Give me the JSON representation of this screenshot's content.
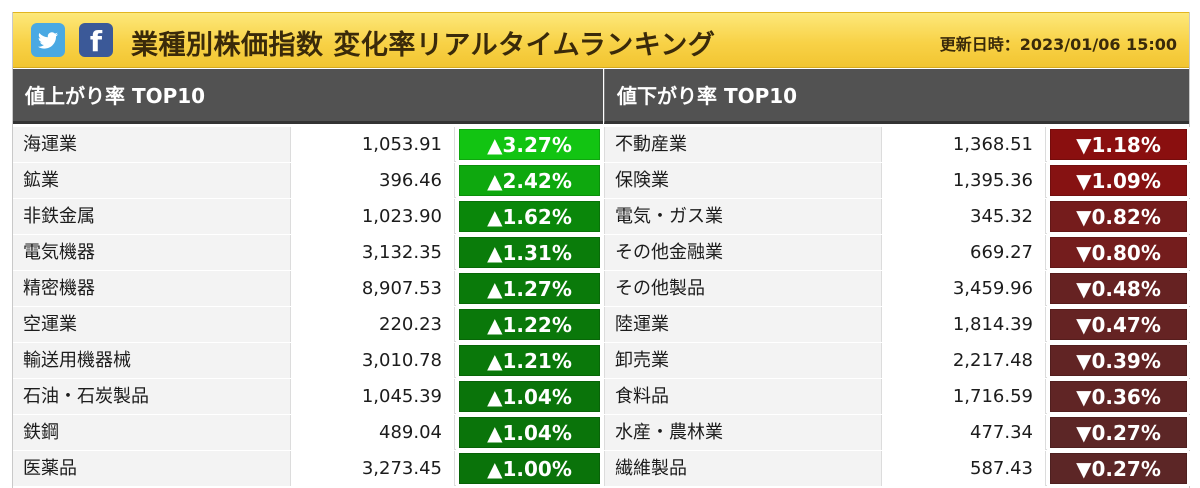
{
  "header": {
    "title": "業種別株価指数 変化率リアルタイムランキング",
    "update_label": "更新日時：2023/01/06 15:00",
    "share_icons": [
      "twitter-icon",
      "facebook-icon"
    ],
    "facebook_glyph": "f",
    "colors": {
      "twitter": "#4aa9e3",
      "facebook": "#3b5998",
      "banner": "#f8d247"
    }
  },
  "gainers": {
    "heading": "値上がり率 TOP10",
    "rows": [
      {
        "name": "海運業",
        "value": "1,053.91",
        "change": "▲3.27%",
        "color": "#12c412"
      },
      {
        "name": "鉱業",
        "value": "396.46",
        "change": "▲2.42%",
        "color": "#0ea80e"
      },
      {
        "name": "非鉄金属",
        "value": "1,023.90",
        "change": "▲1.62%",
        "color": "#0a870a"
      },
      {
        "name": "電気機器",
        "value": "3,132.35",
        "change": "▲1.31%",
        "color": "#0a7c0a"
      },
      {
        "name": "精密機器",
        "value": "8,907.53",
        "change": "▲1.27%",
        "color": "#0a7a0a"
      },
      {
        "name": "空運業",
        "value": "220.23",
        "change": "▲1.22%",
        "color": "#0a780a"
      },
      {
        "name": "輸送用機器械",
        "value": "3,010.78",
        "change": "▲1.21%",
        "color": "#0a780a"
      },
      {
        "name": "石油・石炭製品",
        "value": "1,045.39",
        "change": "▲1.04%",
        "color": "#0a740a"
      },
      {
        "name": "鉄鋼",
        "value": "489.04",
        "change": "▲1.04%",
        "color": "#0a740a"
      },
      {
        "name": "医薬品",
        "value": "3,273.45",
        "change": "▲1.00%",
        "color": "#0a730a"
      }
    ]
  },
  "losers": {
    "heading": "値下がり率 TOP10",
    "rows": [
      {
        "name": "不動産業",
        "value": "1,368.51",
        "change": "▼1.18%",
        "color": "#8a0f0f"
      },
      {
        "name": "保険業",
        "value": "1,395.36",
        "change": "▼1.09%",
        "color": "#861212"
      },
      {
        "name": "電気・ガス業",
        "value": "345.32",
        "change": "▼0.82%",
        "color": "#751c1c"
      },
      {
        "name": "その他金融業",
        "value": "669.27",
        "change": "▼0.80%",
        "color": "#741d1d"
      },
      {
        "name": "その他製品",
        "value": "3,459.96",
        "change": "▼0.48%",
        "color": "#662222"
      },
      {
        "name": "陸運業",
        "value": "1,814.39",
        "change": "▼0.47%",
        "color": "#652323"
      },
      {
        "name": "卸売業",
        "value": "2,217.48",
        "change": "▼0.39%",
        "color": "#612424"
      },
      {
        "name": "食料品",
        "value": "1,716.59",
        "change": "▼0.36%",
        "color": "#602525"
      },
      {
        "name": "水産・農林業",
        "value": "477.34",
        "change": "▼0.27%",
        "color": "#5c2626"
      },
      {
        "name": "繊維製品",
        "value": "587.43",
        "change": "▼0.27%",
        "color": "#5c2626"
      }
    ]
  }
}
